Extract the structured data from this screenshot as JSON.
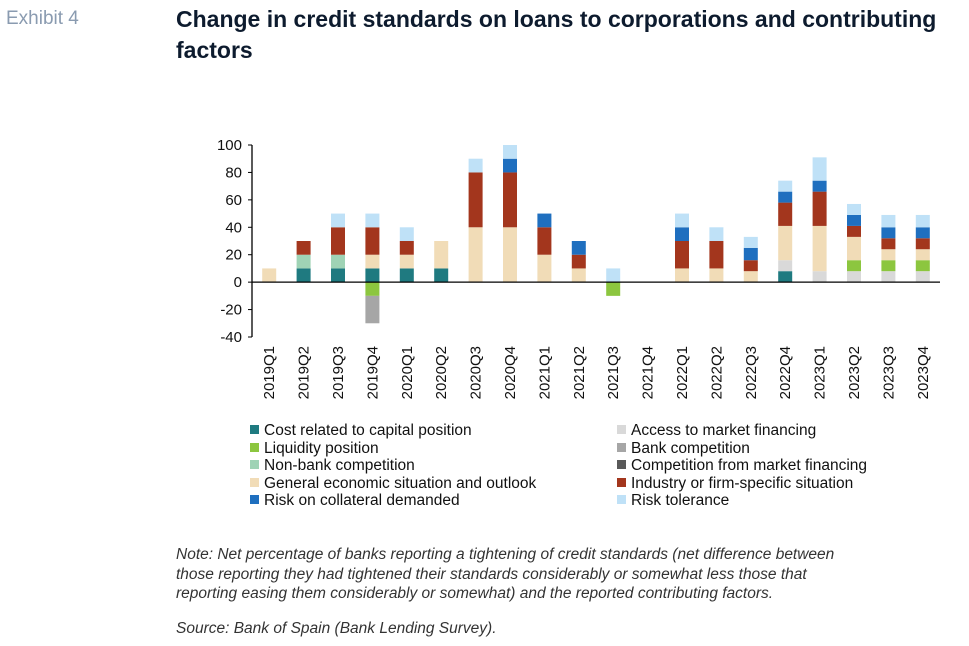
{
  "header": {
    "exhibit": "Exhibit 4",
    "title": "Change in credit standards on loans to corporations and contributing factors"
  },
  "chart_data": {
    "type": "bar",
    "stacked": true,
    "categories": [
      "2019Q1",
      "2019Q2",
      "2019Q3",
      "2019Q4",
      "2020Q1",
      "2020Q2",
      "2020Q3",
      "2020Q4",
      "2021Q1",
      "2021Q2",
      "2021Q3",
      "2021Q4",
      "2022Q1",
      "2022Q2",
      "2022Q3",
      "2022Q4",
      "2023Q1",
      "2023Q2",
      "2023Q3",
      "2023Q4"
    ],
    "ylim": [
      -40,
      100
    ],
    "yticks": [
      -40,
      -20,
      0,
      20,
      40,
      60,
      80,
      100
    ],
    "grid": false,
    "legend_position": "bottom",
    "series": [
      {
        "name": "Cost related to capital position",
        "color": "#1f7a80",
        "values": [
          0,
          10,
          10,
          10,
          10,
          10,
          0,
          0,
          0,
          0,
          0,
          0,
          0,
          0,
          0,
          8,
          0,
          0,
          0,
          0
        ]
      },
      {
        "name": "Access to market financing",
        "color": "#d9d9d9",
        "values": [
          0,
          0,
          0,
          0,
          0,
          0,
          0,
          0,
          0,
          0,
          0,
          0,
          0,
          0,
          0,
          8,
          8,
          8,
          8,
          8
        ]
      },
      {
        "name": "Liquidity position",
        "color": "#8cc63f",
        "values": [
          0,
          0,
          0,
          -10,
          0,
          0,
          0,
          0,
          0,
          0,
          -10,
          0,
          0,
          0,
          0,
          0,
          0,
          8,
          8,
          8
        ]
      },
      {
        "name": "Bank competition",
        "color": "#a6a6a6",
        "values": [
          0,
          0,
          0,
          -20,
          0,
          0,
          0,
          0,
          0,
          0,
          0,
          0,
          0,
          0,
          0,
          0,
          0,
          0,
          0,
          0
        ]
      },
      {
        "name": "Non-bank competition",
        "color": "#9fd3b5",
        "values": [
          0,
          10,
          10,
          0,
          0,
          0,
          0,
          0,
          0,
          0,
          0,
          0,
          0,
          0,
          0,
          0,
          0,
          0,
          0,
          0
        ]
      },
      {
        "name": "Competition from market financing",
        "color": "#595959",
        "values": [
          0,
          0,
          0,
          0,
          0,
          0,
          0,
          0,
          0,
          0,
          0,
          0,
          0,
          0,
          0,
          0,
          0,
          0,
          0,
          0
        ]
      },
      {
        "name": "General economic situation and outlook",
        "color": "#f1dcb7",
        "values": [
          10,
          0,
          0,
          10,
          10,
          20,
          40,
          40,
          20,
          10,
          0,
          0,
          10,
          10,
          8,
          25,
          33,
          17,
          8,
          8
        ]
      },
      {
        "name": "Industry or firm-specific situation",
        "color": "#a3361d",
        "values": [
          0,
          10,
          20,
          20,
          10,
          0,
          40,
          40,
          20,
          10,
          0,
          0,
          20,
          20,
          8,
          17,
          25,
          8,
          8,
          8
        ]
      },
      {
        "name": "Risk on collateral demanded",
        "color": "#1f6fbf",
        "values": [
          0,
          0,
          0,
          0,
          0,
          0,
          0,
          10,
          10,
          10,
          0,
          0,
          10,
          0,
          9,
          8,
          8,
          8,
          8,
          8
        ]
      },
      {
        "name": "Risk tolerance",
        "color": "#bfe1f7",
        "values": [
          0,
          0,
          10,
          10,
          10,
          0,
          10,
          10,
          0,
          0,
          10,
          0,
          10,
          10,
          8,
          8,
          17,
          8,
          9,
          9
        ]
      }
    ]
  },
  "notes": {
    "note_lines": [
      "Note: Net percentage of banks reporting a tightening of credit standards (net difference between",
      "those reporting they had tightened their standards considerably or somewhat less those that",
      "reporting easing them considerably or somewhat) and the reported contributing factors."
    ],
    "source": "Source: Bank of Spain (Bank Lending Survey)."
  }
}
